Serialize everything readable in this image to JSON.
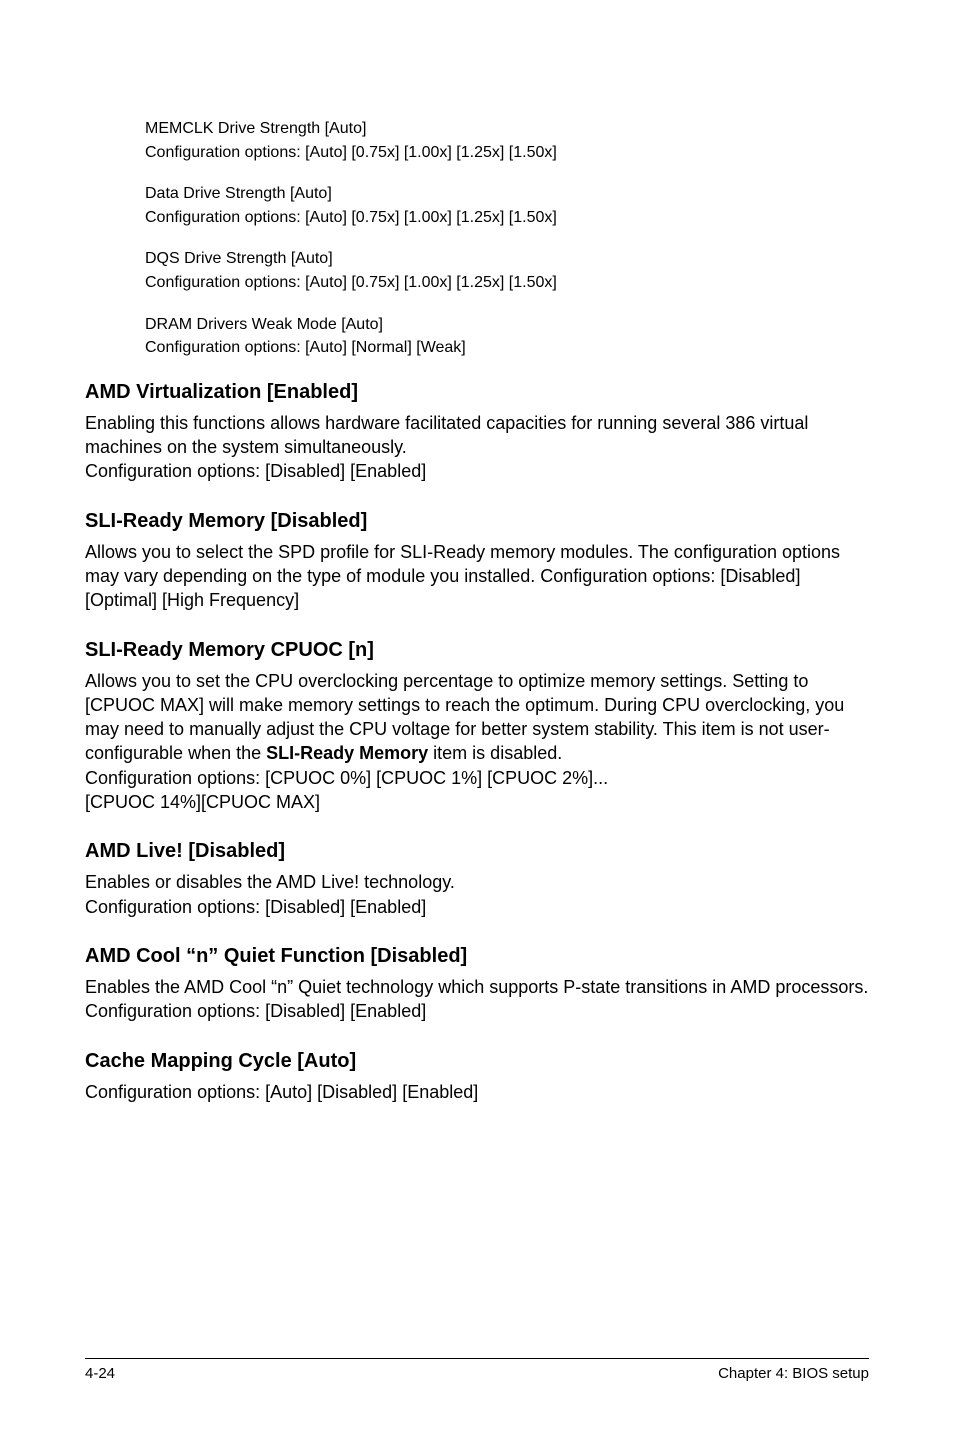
{
  "indented": [
    {
      "line1": "MEMCLK Drive Strength [Auto]",
      "line2": "Configuration options: [Auto] [0.75x] [1.00x] [1.25x] [1.50x]"
    },
    {
      "line1": "Data Drive Strength [Auto]",
      "line2": "Configuration options: [Auto] [0.75x] [1.00x] [1.25x] [1.50x]"
    },
    {
      "line1": "DQS Drive Strength [Auto]",
      "line2": "Configuration options: [Auto] [0.75x] [1.00x] [1.25x] [1.50x]"
    },
    {
      "line1": "DRAM Drivers Weak Mode [Auto]",
      "line2": "Configuration options: [Auto] [Normal] [Weak]"
    }
  ],
  "sections": {
    "amd_virt": {
      "heading": "AMD Virtualization [Enabled]",
      "body": "Enabling this functions allows hardware facilitated capacities for running several 386 virtual machines on the system simultaneously.\nConfiguration options: [Disabled] [Enabled]"
    },
    "sli_mem": {
      "heading": "SLI-Ready Memory [Disabled]",
      "body": "Allows you to select the SPD profile for SLI-Ready memory modules. The configuration options may vary depending on the type of module you installed. Configuration options: [Disabled] [Optimal] [High Frequency]"
    },
    "sli_cpuoc": {
      "heading": "SLI-Ready Memory CPUOC [n]",
      "body_pre": "Allows you to set the CPU overclocking percentage to optimize memory settings. Setting to [CPUOC MAX] will make memory settings to reach the optimum. During CPU overclocking, you may need to manually adjust the CPU voltage for better system stability. This item is not user-configurable when the ",
      "bold": "SLI-Ready Memory",
      "body_post": " item is disabled.\nConfiguration options: [CPUOC 0%] [CPUOC 1%] [CPUOC 2%]...\n[CPUOC 14%][CPUOC MAX]"
    },
    "amd_live": {
      "heading": "AMD Live! [Disabled]",
      "body": "Enables or disables the AMD Live! technology.\nConfiguration options: [Disabled] [Enabled]"
    },
    "amd_cool": {
      "heading": "AMD Cool “n” Quiet Function [Disabled]",
      "body": "Enables the AMD Cool “n” Quiet technology which supports P-state transitions in AMD processors. Configuration options: [Disabled] [Enabled]"
    },
    "cache": {
      "heading": "Cache Mapping Cycle [Auto]",
      "body": "Configuration options: [Auto] [Disabled] [Enabled]"
    }
  },
  "footer": {
    "left": "4-24",
    "right": "Chapter 4: BIOS setup"
  }
}
